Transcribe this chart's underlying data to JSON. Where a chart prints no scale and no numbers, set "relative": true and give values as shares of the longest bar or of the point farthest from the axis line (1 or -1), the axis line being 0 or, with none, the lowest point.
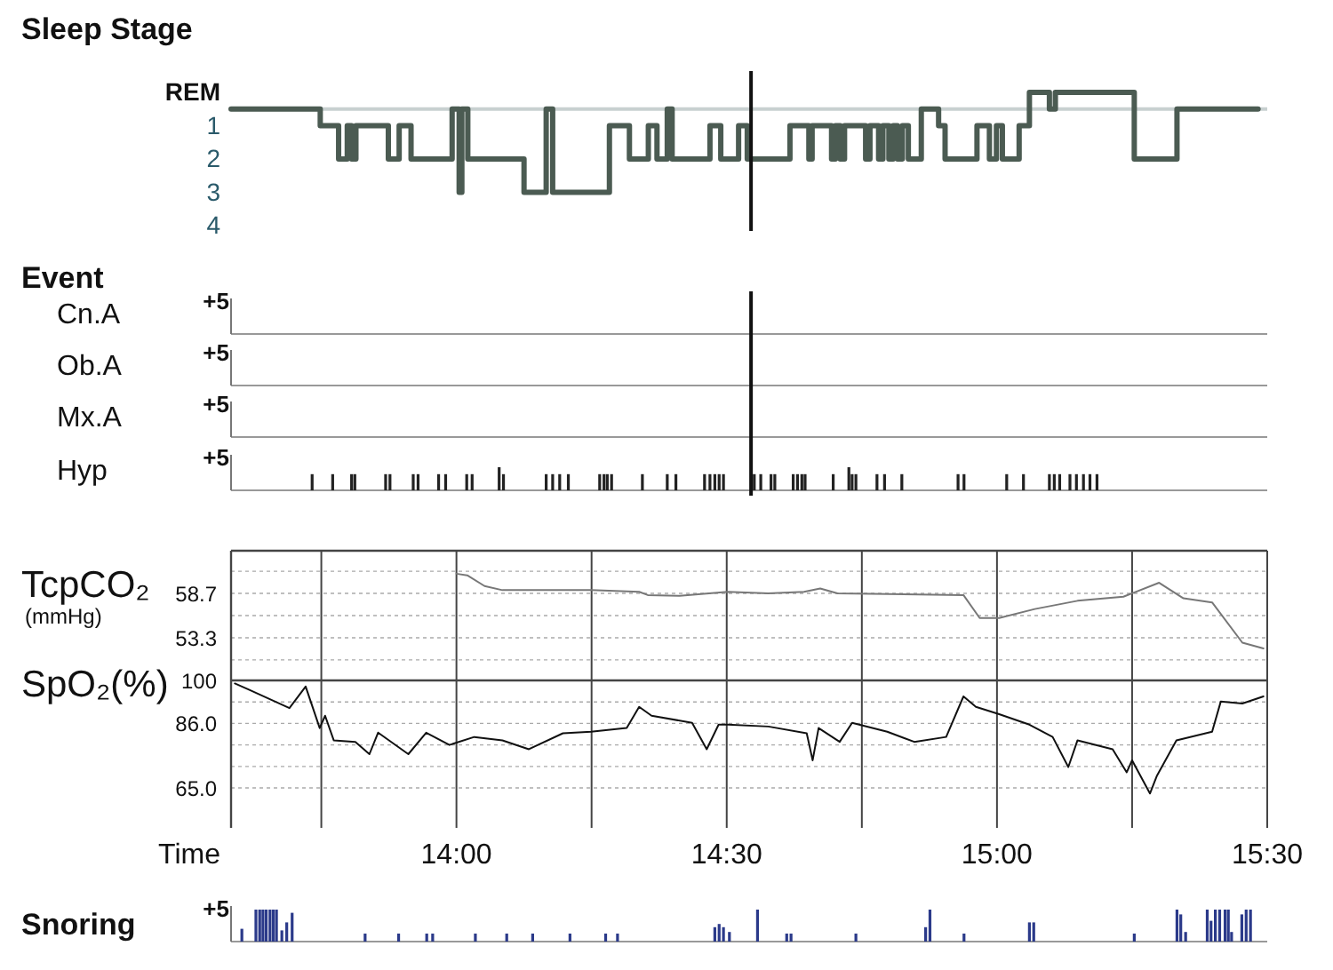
{
  "chart_data": [
    {
      "type": "step",
      "title": "Sleep Stage",
      "xlim": [
        13.583,
        15.5
      ],
      "ylim": [
        4,
        0
      ],
      "yticks": [
        {
          "value": 0,
          "label": "REM"
        },
        1,
        2,
        3,
        4
      ],
      "tick_labels": "y",
      "color": "#4b5b52",
      "ref_lines": [
        {
          "axis": "y",
          "value": 0.5,
          "color": "#c8d0d0"
        },
        {
          "axis": "x",
          "value": 14.545
        }
      ],
      "x": [
        13.583,
        13.748,
        13.782,
        13.798,
        13.806,
        13.814,
        13.874,
        13.894,
        13.916,
        13.992,
        14.005,
        14.01,
        14.021,
        14.125,
        14.166,
        14.178,
        14.283,
        14.32,
        14.355,
        14.371,
        14.39,
        14.399,
        14.469,
        14.489,
        14.522,
        14.538,
        14.617,
        14.652,
        14.658,
        14.694,
        14.701,
        14.71,
        14.718,
        14.757,
        14.765,
        14.781,
        14.789,
        14.8,
        14.808,
        14.816,
        14.825,
        14.836,
        14.86,
        14.892,
        14.904,
        14.963,
        14.986,
        14.999,
        15.01,
        15.041,
        15.06,
        15.097,
        15.108,
        15.254,
        15.333,
        15.483
      ],
      "values": [
        0.5,
        1,
        2,
        1,
        2,
        1,
        2,
        1,
        2,
        0.5,
        3,
        0.5,
        2,
        3,
        0.5,
        3,
        1,
        2,
        1,
        2,
        0.5,
        2,
        1,
        2,
        1,
        2,
        1,
        2,
        1,
        2,
        1,
        2,
        1,
        2,
        1,
        2,
        1,
        2,
        1,
        2,
        1,
        2,
        0.5,
        1,
        2,
        1,
        2,
        1,
        2,
        1,
        0,
        0.5,
        0,
        2,
        0.5,
        0.5
      ]
    },
    {
      "type": "other",
      "title": "Event",
      "ylabel": "Cn.A",
      "annotations": [
        "+5"
      ]
    },
    {
      "type": "other",
      "ylabel": "Ob.A",
      "annotations": [
        "+5"
      ]
    },
    {
      "type": "other",
      "ylabel": "Mx.A",
      "annotations": [
        "+5"
      ]
    },
    {
      "type": "bar",
      "ylabel": "Hyp",
      "relative": true,
      "xlim": [
        13.583,
        15.5
      ],
      "tick_labels": false,
      "annotations": [
        "+5"
      ],
      "ref_lines": [
        {
          "axis": "x",
          "value": 14.545
        }
      ],
      "color": "#222222",
      "x": [
        13.733,
        13.771,
        13.806,
        13.812,
        13.869,
        13.877,
        13.92,
        13.929,
        13.967,
        13.98,
        14.019,
        14.029,
        14.079,
        14.087,
        14.166,
        14.178,
        14.191,
        14.207,
        14.265,
        14.273,
        14.279,
        14.287,
        14.344,
        14.39,
        14.406,
        14.459,
        14.469,
        14.478,
        14.486,
        14.494,
        14.551,
        14.563,
        14.582,
        14.589,
        14.623,
        14.631,
        14.639,
        14.645,
        14.697,
        14.726,
        14.732,
        14.739,
        14.778,
        14.792,
        14.824,
        14.928,
        14.939,
        15.018,
        15.049,
        15.097,
        15.106,
        15.116,
        15.135,
        15.147,
        15.16,
        15.172,
        15.185
      ],
      "values": [
        0.7,
        0.7,
        0.7,
        0.7,
        0.7,
        0.7,
        0.7,
        0.7,
        0.7,
        0.7,
        0.7,
        0.7,
        1,
        0.7,
        0.7,
        0.7,
        0.7,
        0.7,
        0.7,
        0.7,
        0.7,
        0.7,
        0.7,
        0.7,
        0.7,
        0.7,
        0.7,
        0.7,
        0.7,
        0.7,
        0.7,
        0.7,
        0.7,
        0.7,
        0.7,
        0.7,
        0.7,
        0.7,
        0.7,
        1,
        0.7,
        0.7,
        0.7,
        0.7,
        0.7,
        0.7,
        0.7,
        0.7,
        0.7,
        0.7,
        0.7,
        0.7,
        0.7,
        0.7,
        0.7,
        0.7,
        0.7
      ]
    },
    {
      "type": "line",
      "ylabel": "TcpCO₂",
      "annotations": [
        "(mmHg)"
      ],
      "xlim": [
        13.583,
        15.5
      ],
      "xticks": [
        {
          "value": 13.75,
          "label": null
        },
        {
          "value": 14,
          "label": null
        },
        {
          "value": 14.25,
          "label": null
        },
        {
          "value": 14.5,
          "label": null
        },
        {
          "value": 14.75,
          "label": null
        },
        {
          "value": 15,
          "label": null
        },
        {
          "value": 15.25,
          "label": null
        },
        {
          "value": 15.5,
          "label": null
        }
      ],
      "ylim": [
        48.1,
        63.9
      ],
      "yticks": [
        {
          "value": 61.4,
          "label": null
        },
        58.7,
        {
          "value": 56,
          "label": null
        },
        53.3,
        {
          "value": 50.6,
          "label": null
        }
      ],
      "tick_labels": "y",
      "grid": true,
      "color": "#777777",
      "x": [
        14.0,
        14.02,
        14.052,
        14.085,
        14.141,
        14.249,
        14.338,
        14.354,
        14.413,
        14.502,
        14.577,
        14.643,
        14.673,
        14.705,
        14.938,
        14.968,
        15.004,
        15.07,
        15.149,
        15.234,
        15.3,
        15.345,
        15.398,
        15.454,
        15.493
      ],
      "values": [
        61.1,
        60.9,
        59.6,
        59.1,
        59.1,
        59.1,
        58.9,
        58.5,
        58.4,
        58.9,
        58.7,
        58.9,
        59.3,
        58.7,
        58.5,
        55.7,
        55.7,
        56.8,
        57.8,
        58.3,
        60.0,
        58.1,
        57.6,
        52.7,
        52.0
      ]
    },
    {
      "type": "line",
      "ylabel": "SpO₂(%)",
      "xlabel": "Time",
      "xlim": [
        13.583,
        15.5
      ],
      "xticks": [
        {
          "value": 13.75,
          "label": null
        },
        {
          "value": 14,
          "label": "14:00"
        },
        {
          "value": 14.25,
          "label": null
        },
        {
          "value": 14.5,
          "label": "14:30"
        },
        {
          "value": 14.75,
          "label": null
        },
        {
          "value": 15,
          "label": "15:00"
        },
        {
          "value": 15.25,
          "label": null
        },
        {
          "value": 15.5,
          "label": "15:30"
        }
      ],
      "ylim": [
        52,
        100
      ],
      "yticks": [
        100,
        {
          "value": 93,
          "label": null
        },
        {
          "value": 86,
          "label": "86.0"
        },
        {
          "value": 79,
          "label": null
        },
        {
          "value": 72,
          "label": null
        },
        {
          "value": 65,
          "label": "65.0"
        }
      ],
      "grid": true,
      "color": "#111111",
      "x": [
        13.59,
        13.616,
        13.691,
        13.721,
        13.747,
        13.757,
        13.773,
        13.813,
        13.839,
        13.855,
        13.911,
        13.944,
        13.987,
        14.033,
        14.085,
        14.134,
        14.197,
        14.249,
        14.315,
        14.338,
        14.361,
        14.436,
        14.463,
        14.485,
        14.502,
        14.577,
        14.648,
        14.659,
        14.67,
        14.709,
        14.732,
        14.797,
        14.847,
        14.906,
        14.938,
        14.961,
        15.004,
        15.06,
        15.103,
        15.132,
        15.149,
        15.214,
        15.24,
        15.25,
        15.283,
        15.296,
        15.332,
        15.398,
        15.414,
        15.454,
        15.493
      ],
      "values": [
        99,
        97,
        91,
        98,
        84.5,
        88.5,
        80.5,
        80,
        76,
        83,
        76,
        83,
        79,
        81.6,
        80.5,
        77.6,
        82.8,
        83.3,
        84.5,
        91.4,
        88.5,
        86.2,
        77.6,
        85.6,
        85.6,
        85,
        82.8,
        74,
        84.5,
        80,
        86.2,
        83.3,
        80,
        81.6,
        94.8,
        91.4,
        89,
        85.6,
        81.6,
        71.8,
        80.5,
        77.6,
        70.1,
        74,
        63.2,
        69,
        80.5,
        83.3,
        93.1,
        92.5,
        94.8
      ]
    },
    {
      "type": "bar",
      "title": "Snoring",
      "relative": true,
      "xlim": [
        13.583,
        15.5
      ],
      "tick_labels": false,
      "annotations": [
        "+5"
      ],
      "color": "#2b3a8a",
      "x": [
        13.603,
        13.629,
        13.636,
        13.642,
        13.648,
        13.655,
        13.661,
        13.667,
        13.677,
        13.686,
        13.696,
        13.831,
        13.893,
        13.945,
        13.956,
        14.035,
        14.093,
        14.141,
        14.21,
        14.276,
        14.298,
        14.478,
        14.486,
        14.494,
        14.505,
        14.557,
        14.611,
        14.619,
        14.739,
        14.868,
        14.876,
        14.939,
        15.06,
        15.068,
        15.254,
        15.333,
        15.34,
        15.349,
        15.389,
        15.396,
        15.404,
        15.412,
        15.422,
        15.428,
        15.434,
        15.453,
        15.461,
        15.469
      ],
      "values": [
        0.4,
        1,
        1,
        1,
        1,
        1,
        1,
        1,
        0.35,
        0.6,
        0.9,
        0.25,
        0.25,
        0.25,
        0.25,
        0.25,
        0.25,
        0.25,
        0.25,
        0.25,
        0.25,
        0.45,
        0.55,
        0.45,
        0.3,
        1,
        0.25,
        0.25,
        0.25,
        0.45,
        1,
        0.25,
        0.6,
        0.6,
        0.25,
        1,
        0.85,
        0.3,
        1,
        0.65,
        1,
        1,
        1,
        1,
        0.3,
        0.85,
        1,
        1
      ]
    }
  ]
}
